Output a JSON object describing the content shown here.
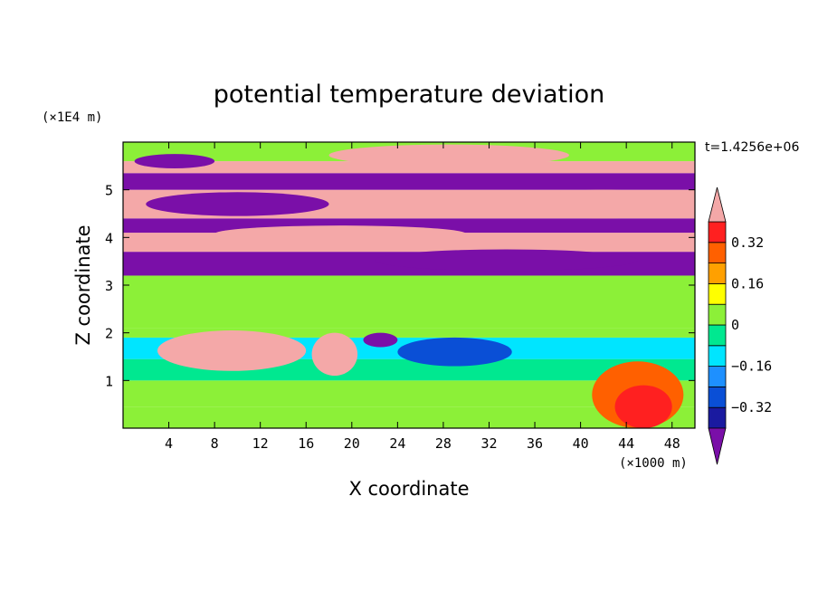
{
  "chart_data": {
    "type": "heatmap",
    "title": "potential temperature deviation",
    "xlabel": "X coordinate",
    "ylabel": "Z coordinate",
    "x_unit": "(×1000 m)",
    "y_unit": "(×1E4 m)",
    "time_label": "t=1.4256e+06",
    "xlim": [
      0,
      50
    ],
    "ylim": [
      0,
      6
    ],
    "x_ticks": [
      "4",
      "8",
      "12",
      "16",
      "20",
      "24",
      "28",
      "32",
      "36",
      "40",
      "44",
      "48"
    ],
    "x_tick_values": [
      4,
      8,
      12,
      16,
      20,
      24,
      28,
      32,
      36,
      40,
      44,
      48
    ],
    "y_ticks": [
      "1",
      "2",
      "3",
      "4",
      "5"
    ],
    "y_tick_values": [
      1,
      2,
      3,
      4,
      5
    ],
    "colorbar": {
      "labels": [
        "0.32",
        "0.16",
        "0",
        "−0.16",
        "−0.32"
      ],
      "label_values": [
        0.32,
        0.16,
        0,
        -0.16,
        -0.32
      ],
      "levels": [
        -0.4,
        -0.32,
        -0.24,
        -0.16,
        -0.08,
        0,
        0.08,
        0.16,
        0.24,
        0.32,
        0.4
      ],
      "colors": [
        "#7a0fa8",
        "#1a1aa0",
        "#0a4fd6",
        "#1e90ff",
        "#00e5ff",
        "#00e890",
        "#8cf038",
        "#ffff00",
        "#ffa000",
        "#ff6000",
        "#ff2020",
        "#f4a8a8"
      ],
      "extend": "both"
    },
    "bands": [
      {
        "z": [
          0.0,
          0.45
        ],
        "value": 0.02
      },
      {
        "z": [
          0.45,
          1.0
        ],
        "value": 0.05
      },
      {
        "z": [
          1.0,
          1.45
        ],
        "value": -0.04
      },
      {
        "z": [
          1.45,
          1.9
        ],
        "value": -0.1
      },
      {
        "z": [
          1.9,
          2.1
        ],
        "value": 0.05
      },
      {
        "z": [
          2.1,
          3.2
        ],
        "value": 0.0
      },
      {
        "z": [
          3.2,
          3.7
        ],
        "value": -0.45
      },
      {
        "z": [
          3.7,
          4.1
        ],
        "value": 0.45
      },
      {
        "z": [
          4.1,
          4.4
        ],
        "value": -0.45
      },
      {
        "z": [
          4.4,
          5.0
        ],
        "value": 0.45
      },
      {
        "z": [
          5.0,
          5.35
        ],
        "value": -0.45
      },
      {
        "z": [
          5.35,
          5.6
        ],
        "value": 0.45
      },
      {
        "z": [
          5.6,
          6.0
        ],
        "value": 0.04
      }
    ],
    "features": [
      {
        "x": [
          3,
          16
        ],
        "z": [
          1.2,
          2.05
        ],
        "value": 0.45
      },
      {
        "x": [
          16.5,
          20.5
        ],
        "z": [
          1.1,
          2.0
        ],
        "value": 0.45
      },
      {
        "x": [
          24,
          34
        ],
        "z": [
          1.3,
          1.9
        ],
        "value": -0.3
      },
      {
        "x": [
          21,
          24
        ],
        "z": [
          1.7,
          2.0
        ],
        "value": -0.45
      },
      {
        "x": [
          41,
          49
        ],
        "z": [
          0.0,
          1.4
        ],
        "value": 0.24
      },
      {
        "x": [
          43,
          48
        ],
        "z": [
          0.0,
          0.9
        ],
        "value": 0.32
      },
      {
        "x": [
          18,
          39
        ],
        "z": [
          5.5,
          5.95
        ],
        "value": 0.45
      },
      {
        "x": [
          34,
          50
        ],
        "z": [
          4.4,
          5.0
        ],
        "value": 0.45
      },
      {
        "x": [
          1,
          8
        ],
        "z": [
          5.45,
          5.75
        ],
        "value": -0.45
      },
      {
        "x": [
          22,
          45
        ],
        "z": [
          3.3,
          3.75
        ],
        "value": -0.45
      },
      {
        "x": [
          2,
          18
        ],
        "z": [
          4.45,
          4.95
        ],
        "value": -0.45
      },
      {
        "x": [
          8,
          30
        ],
        "z": [
          3.9,
          4.25
        ],
        "value": 0.45
      }
    ]
  }
}
